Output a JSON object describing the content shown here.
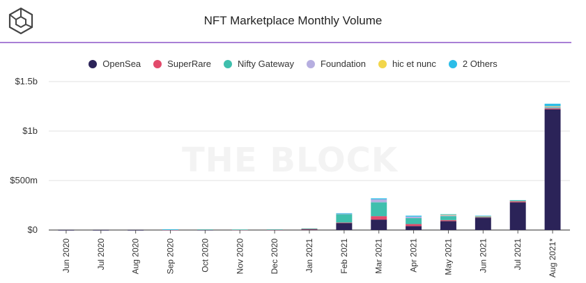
{
  "header": {
    "title": "NFT Marketplace Monthly Volume",
    "logo_icon": "the-block-cube-logo",
    "watermark": "THE BLOCK"
  },
  "colors": {
    "OpenSea": "#2b2358",
    "SuperRare": "#e24a6b",
    "Nifty Gateway": "#3fbfad",
    "Foundation": "#b6aee0",
    "hic et nunc": "#f2d64b",
    "2 Others": "#2bbde8",
    "accent_rule": "#a87fd6"
  },
  "chart_data": {
    "type": "bar",
    "stacked": true,
    "title": "NFT Marketplace Monthly Volume",
    "xlabel": "",
    "ylabel": "",
    "ylim": [
      0,
      1500000000
    ],
    "yticks": [
      0,
      500000000,
      1000000000,
      1500000000
    ],
    "ytick_labels": [
      "$0",
      "$500m",
      "$1b",
      "$1.5b"
    ],
    "grid": true,
    "legend_position": "top",
    "categories": [
      "Jun 2020",
      "Jul 2020",
      "Aug 2020",
      "Sep 2020",
      "Oct 2020",
      "Nov 2020",
      "Dec 2020",
      "Jan 2021",
      "Feb 2021",
      "Mar 2021",
      "Apr 2021",
      "May 2021",
      "Jun 2021",
      "Jul 2021",
      "Aug 2021*"
    ],
    "series": [
      {
        "name": "OpenSea",
        "values": [
          1000000,
          1000000,
          1000000,
          2000000,
          2000000,
          2000000,
          3000000,
          8000000,
          70000000,
          105000000,
          40000000,
          90000000,
          125000000,
          280000000,
          1220000000
        ]
      },
      {
        "name": "SuperRare",
        "values": [
          0,
          0,
          0,
          1000000,
          3000000,
          1000000,
          1000000,
          2000000,
          5000000,
          35000000,
          20000000,
          10000000,
          5000000,
          10000000,
          10000000
        ]
      },
      {
        "name": "Nifty Gateway",
        "values": [
          0,
          0,
          0,
          3000000,
          1000000,
          2000000,
          3000000,
          6000000,
          85000000,
          140000000,
          60000000,
          40000000,
          5000000,
          4000000,
          8000000
        ]
      },
      {
        "name": "Foundation",
        "values": [
          0,
          0,
          0,
          0,
          0,
          0,
          0,
          0,
          5000000,
          30000000,
          15000000,
          10000000,
          5000000,
          4000000,
          10000000
        ]
      },
      {
        "name": "hic et nunc",
        "values": [
          0,
          0,
          0,
          0,
          0,
          0,
          0,
          0,
          0,
          0,
          0,
          5000000,
          2000000,
          2000000,
          3000000
        ]
      },
      {
        "name": "2 Others",
        "values": [
          0,
          0,
          0,
          1000000,
          0,
          0,
          0,
          0,
          5000000,
          10000000,
          10000000,
          5000000,
          3000000,
          3000000,
          25000000
        ]
      }
    ]
  }
}
